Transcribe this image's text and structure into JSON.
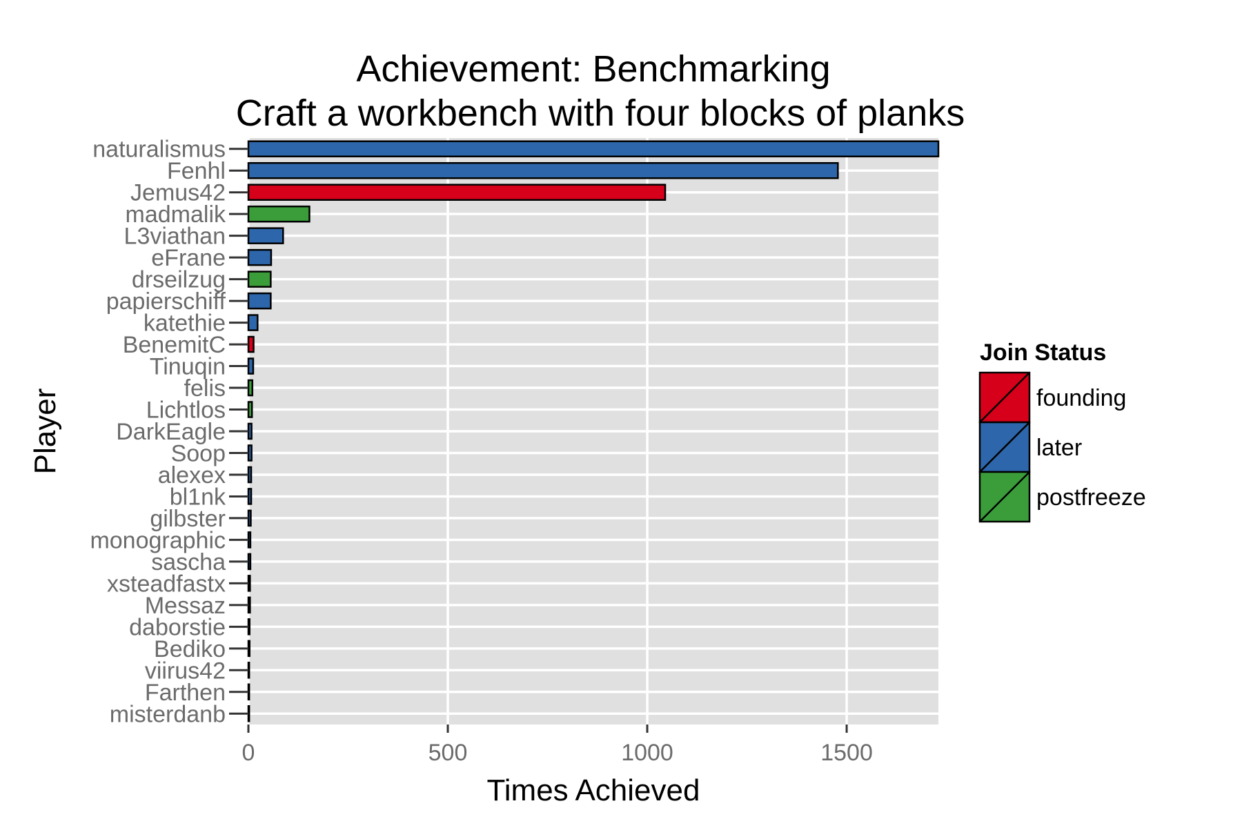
{
  "chart_data": {
    "type": "bar",
    "orientation": "horizontal",
    "title": "Achievement: Benchmarking",
    "subtitle": "Craft a workbench with four blocks of planks",
    "xlabel": "Times Achieved",
    "ylabel": "Player",
    "xlim": [
      0,
      1730
    ],
    "xticks": [
      0,
      500,
      1000,
      1500
    ],
    "grid": true,
    "legend": {
      "title": "Join Status",
      "position": "right",
      "entries": [
        {
          "label": "founding",
          "color": "#d7001a"
        },
        {
          "label": "later",
          "color": "#2d66aa"
        },
        {
          "label": "postfreeze",
          "color": "#3a9d3a"
        }
      ]
    },
    "categories": [
      "naturalismus",
      "Fenhl",
      "Jemus42",
      "madmalik",
      "L3viathan",
      "eFrane",
      "drseilzug",
      "papierschiff",
      "katethie",
      "BenemitC",
      "Tinuqin",
      "felis",
      "Lichtlos",
      "DarkEagle",
      "Soop",
      "alexex",
      "bl1nk",
      "gilbster",
      "monographic",
      "sascha",
      "xsteadfastx",
      "Messaz",
      "daborstie",
      "Bediko",
      "viirus42",
      "Farthen",
      "misterdanb"
    ],
    "values": [
      1730,
      1478,
      1045,
      153,
      87,
      57,
      56,
      56,
      23,
      13,
      12,
      10,
      9,
      8,
      8,
      7,
      7,
      6,
      5,
      5,
      4,
      4,
      3,
      3,
      2,
      2,
      2
    ],
    "status": [
      "later",
      "later",
      "founding",
      "postfreeze",
      "later",
      "later",
      "postfreeze",
      "later",
      "later",
      "founding",
      "later",
      "postfreeze",
      "postfreeze",
      "later",
      "later",
      "later",
      "later",
      "later",
      "later",
      "later",
      "later",
      "later",
      "later",
      "later",
      "later",
      "later",
      "later"
    ]
  }
}
